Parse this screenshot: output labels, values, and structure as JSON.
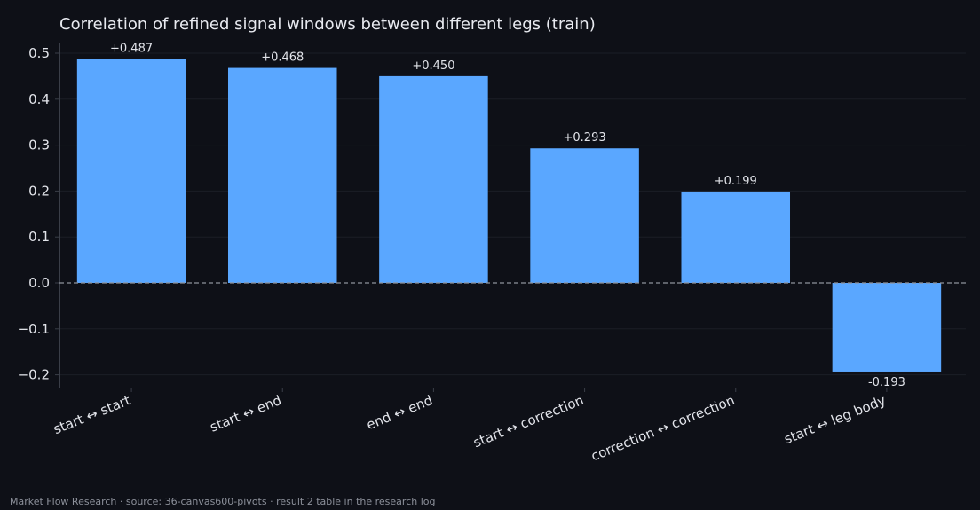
{
  "chart_data": {
    "type": "bar",
    "title": "Correlation of refined signal windows between different legs (train)",
    "categories": [
      "start ↔ start",
      "start ↔ end",
      "end ↔ end",
      "start ↔ correction",
      "correction ↔ correction",
      "start ↔ leg body"
    ],
    "values": [
      0.487,
      0.468,
      0.45,
      0.293,
      0.199,
      -0.193
    ],
    "value_labels": [
      "+0.487",
      "+0.468",
      "+0.450",
      "+0.293",
      "+0.199",
      "-0.193"
    ],
    "ylim": [
      -0.225,
      0.52
    ],
    "yticks": [
      0.5,
      0.4,
      0.3,
      0.2,
      0.1,
      0.0,
      -0.1,
      -0.2
    ],
    "ytick_labels": [
      "0.5",
      "0.4",
      "0.3",
      "0.2",
      "0.1",
      "0.0",
      "−0.1",
      "−0.2"
    ],
    "xlabel": "",
    "ylabel": "",
    "grid": true,
    "zero_line": "dashed",
    "bar_color": "#5aa7ff"
  },
  "colors": {
    "background": "#0e1017",
    "bar": "#5aa7ff",
    "text": "#e2e4ea",
    "grid": "#1b1e27",
    "axis": "#3a3e48",
    "zero_line": "#8f939c"
  },
  "footer": "Market Flow Research · source: 36-canvas600-pivots · result 2 table in the research log"
}
